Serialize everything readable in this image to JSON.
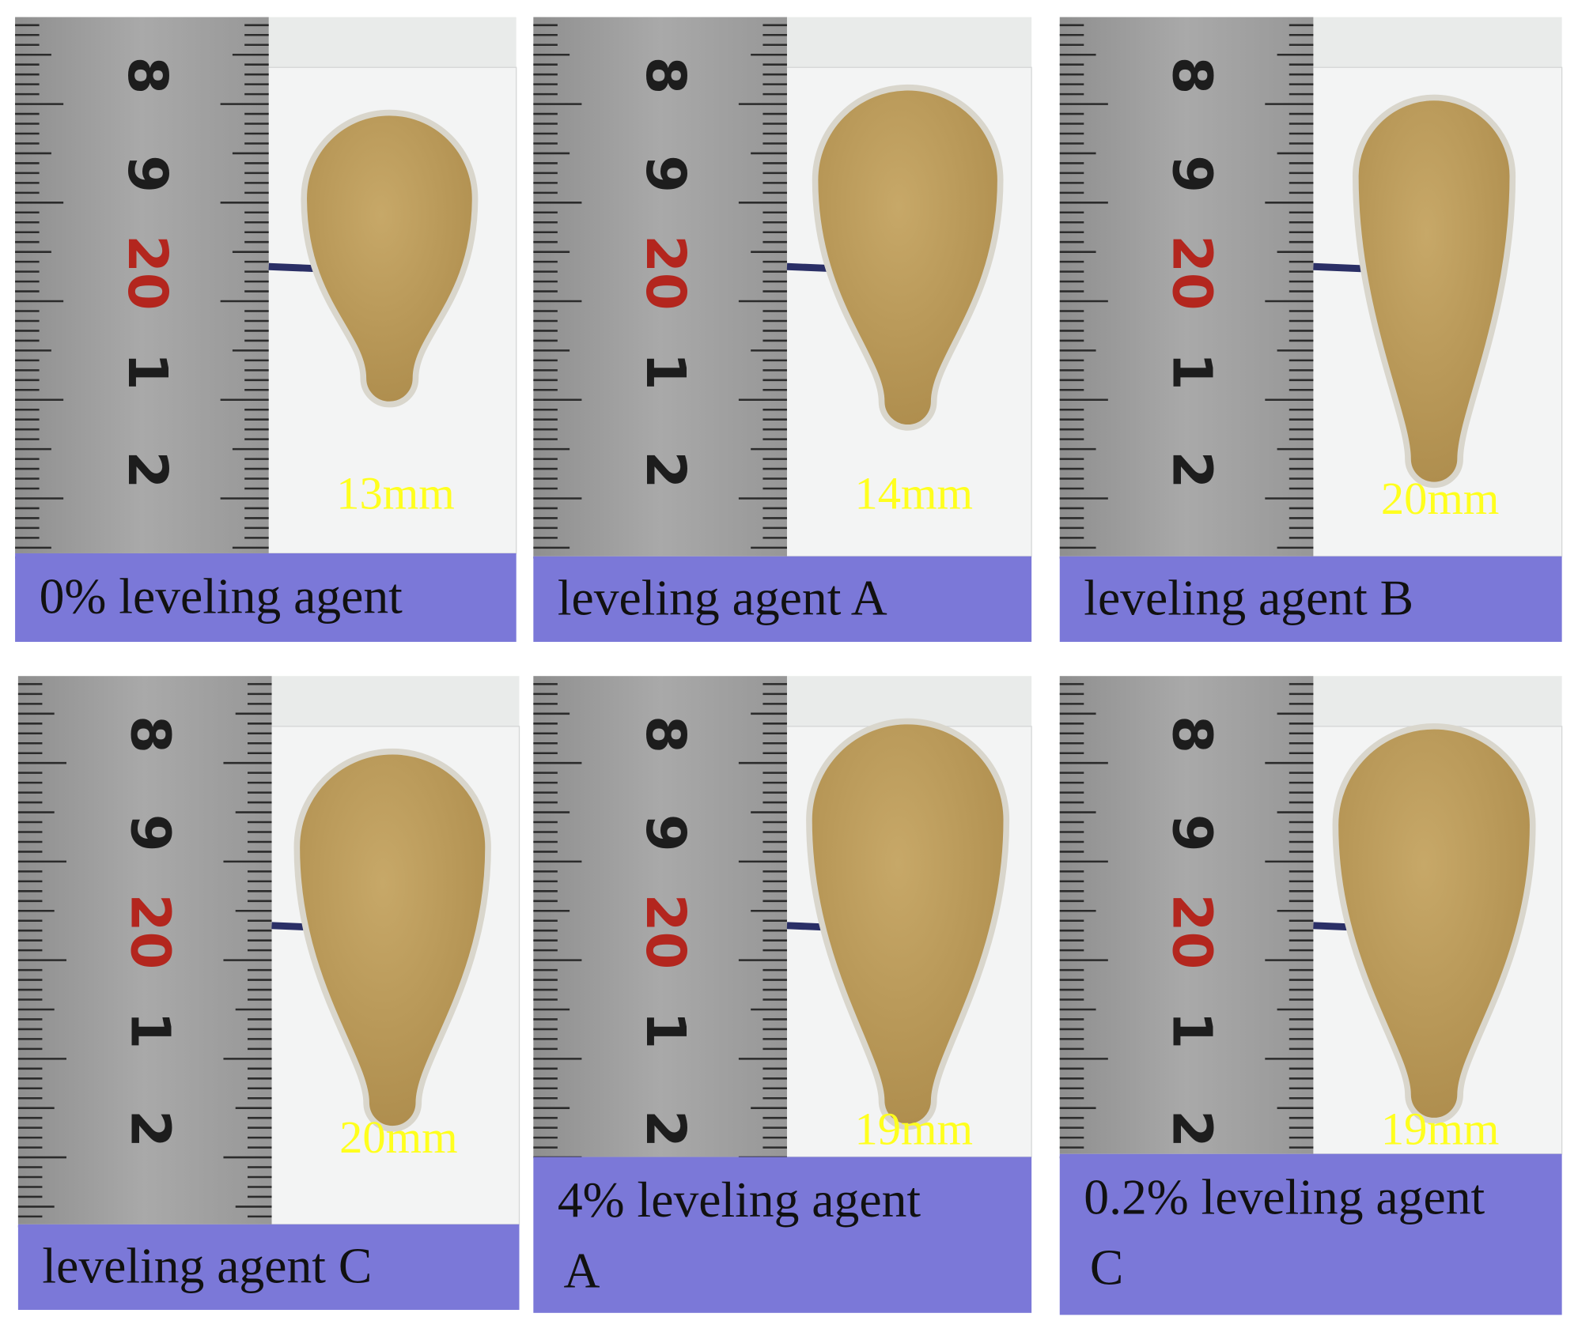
{
  "ruler_labels": [
    "8",
    "9",
    "20",
    "1",
    "2"
  ],
  "panels": [
    {
      "measurement": "13mm",
      "caption": [
        "0% leveling agent"
      ]
    },
    {
      "measurement": "14mm",
      "caption": [
        "leveling agent A"
      ]
    },
    {
      "measurement": "20mm",
      "caption": [
        "leveling agent B"
      ]
    },
    {
      "measurement": "20mm",
      "caption": [
        "leveling agent C"
      ]
    },
    {
      "measurement": "19mm",
      "caption": [
        "4% leveling agent",
        "A"
      ]
    },
    {
      "measurement": "19mm",
      "caption": [
        "0.2% leveling agent",
        "C"
      ]
    }
  ]
}
